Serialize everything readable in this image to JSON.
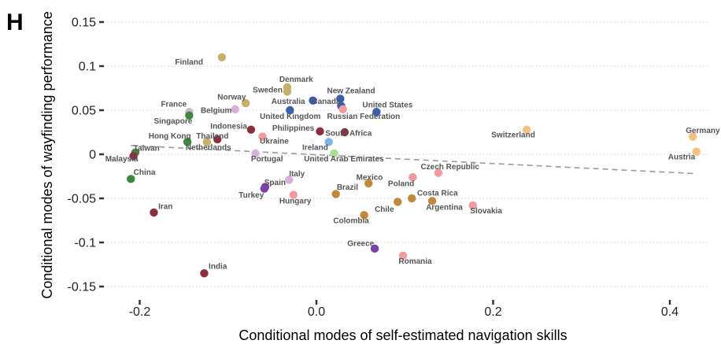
{
  "panel_letter": "H",
  "colors": {
    "Europe": "#b5a060",
    "EuropeCentral": "#f29aa0",
    "Asia": "#8b2f40",
    "EastAsia": "#3a8a3a",
    "Oceania": "#3a5fb0",
    "LatinAmerica": "#c08a3a",
    "Southern": "#d8b0d8",
    "WestEurope": "#f5c080",
    "MiddleEast": "#7b3fb0",
    "Mixed": "#a8e090",
    "LightBlue": "#7bb5e8"
  },
  "chart_data": {
    "type": "scatter",
    "title": "",
    "xlabel": "Conditional modes of self-estimated navigation skills",
    "ylabel": "Conditional modes of wayfinding performance",
    "xlim": [
      -0.245,
      0.45
    ],
    "ylim": [
      -0.155,
      0.155
    ],
    "xticks": [
      -0.2,
      0.0,
      0.2,
      0.4
    ],
    "xtick_labels": [
      "-0.2",
      "0.0",
      "0.2",
      "0.4"
    ],
    "yticks": [
      -0.15,
      -0.1,
      -0.05,
      0,
      0.05,
      0.1,
      0.15
    ],
    "ytick_labels": [
      "-0.15",
      "-0.1",
      "-0.05",
      "0",
      "0.05",
      "0.1",
      "0.15"
    ],
    "grid": true,
    "trend_line": {
      "x": [
        -0.21,
        0.43
      ],
      "y": [
        0.01,
        -0.022
      ]
    },
    "points": [
      {
        "label": "Finland",
        "x": -0.107,
        "y": 0.11,
        "color": "#c8b068",
        "lx": -0.16,
        "ly": 0.102
      },
      {
        "label": "Denmark",
        "x": -0.033,
        "y": 0.076,
        "color": "#c8b068",
        "lx": -0.042,
        "ly": 0.082
      },
      {
        "label": "Sweden",
        "x": -0.033,
        "y": 0.071,
        "color": "#c8b068",
        "lx": -0.072,
        "ly": 0.07
      },
      {
        "label": "New Zealand",
        "x": 0.027,
        "y": 0.063,
        "color": "#3a5fb0",
        "lx": 0.012,
        "ly": 0.069
      },
      {
        "label": "Norway",
        "x": -0.08,
        "y": 0.058,
        "color": "#c8b068",
        "lx": -0.112,
        "ly": 0.062
      },
      {
        "label": "Australia",
        "x": -0.004,
        "y": 0.061,
        "color": "#3a5fb0",
        "lx": -0.051,
        "ly": 0.057
      },
      {
        "label": "Canada",
        "x": 0.028,
        "y": 0.055,
        "color": "#3a5fb0",
        "lx": -0.005,
        "ly": 0.057
      },
      {
        "label": "United States",
        "x": 0.068,
        "y": 0.048,
        "color": "#3a5fb0",
        "lx": 0.052,
        "ly": 0.053
      },
      {
        "label": "France",
        "x": -0.144,
        "y": 0.048,
        "color": "#d8b0d8",
        "lx": -0.176,
        "ly": 0.054
      },
      {
        "label": "Belgium",
        "x": -0.092,
        "y": 0.051,
        "color": "#d8b0d8",
        "lx": -0.131,
        "ly": 0.047
      },
      {
        "label": "United Kingdom",
        "x": -0.03,
        "y": 0.05,
        "color": "#3a5fb0",
        "lx": -0.064,
        "ly": 0.04
      },
      {
        "label": "Russian Federation",
        "x": 0.03,
        "y": 0.051,
        "color": "#f29aa0",
        "lx": 0.012,
        "ly": 0.04
      },
      {
        "label": "Singapore",
        "x": -0.144,
        "y": 0.044,
        "color": "#3a8a3a",
        "lx": -0.184,
        "ly": 0.035
      },
      {
        "label": "Indonesia",
        "x": -0.074,
        "y": 0.028,
        "color": "#8b2f40",
        "lx": -0.12,
        "ly": 0.029
      },
      {
        "label": "Philippines",
        "x": 0.004,
        "y": 0.026,
        "color": "#8b2f40",
        "lx": -0.05,
        "ly": 0.027
      },
      {
        "label": "South Africa",
        "x": 0.032,
        "y": 0.025,
        "color": "#8b2f40",
        "lx": 0.01,
        "ly": 0.021
      },
      {
        "label": "Switzerland",
        "x": 0.238,
        "y": 0.028,
        "color": "#f5c080",
        "lx": 0.198,
        "ly": 0.019
      },
      {
        "label": "Germany",
        "x": 0.426,
        "y": 0.02,
        "color": "#f5c080",
        "lx": 0.418,
        "ly": 0.024
      },
      {
        "label": "Hong Kong",
        "x": -0.146,
        "y": 0.014,
        "color": "#3a8a3a",
        "lx": -0.19,
        "ly": 0.018
      },
      {
        "label": "Thailand",
        "x": -0.112,
        "y": 0.017,
        "color": "#8b2f40",
        "lx": -0.136,
        "ly": 0.018
      },
      {
        "label": "Ukraine",
        "x": -0.061,
        "y": 0.02,
        "color": "#f29aa0",
        "lx": -0.064,
        "ly": 0.012
      },
      {
        "label": "Netherlands",
        "x": -0.124,
        "y": 0.014,
        "color": "#c8b068",
        "lx": -0.148,
        "ly": 0.005
      },
      {
        "label": "Ireland",
        "x": 0.014,
        "y": 0.014,
        "color": "#7bb5e8",
        "lx": -0.016,
        "ly": 0.005
      },
      {
        "label": "Taiwan",
        "x": -0.205,
        "y": 0.002,
        "color": "#3a8a3a",
        "lx": -0.207,
        "ly": 0.004
      },
      {
        "label": "Malaysia",
        "x": -0.207,
        "y": -0.002,
        "color": "#8b2f40",
        "lx": -0.239,
        "ly": -0.008
      },
      {
        "label": "Portugal",
        "x": -0.069,
        "y": 0.001,
        "color": "#d8b0d8",
        "lx": -0.074,
        "ly": -0.008
      },
      {
        "label": "United Arab Emirates",
        "x": 0.02,
        "y": 0.001,
        "color": "#a8e090",
        "lx": -0.014,
        "ly": -0.008
      },
      {
        "label": "Austria",
        "x": 0.43,
        "y": 0.003,
        "color": "#f5c080",
        "lx": 0.398,
        "ly": -0.006
      },
      {
        "label": "Czech Republic",
        "x": 0.138,
        "y": -0.021,
        "color": "#f29aa0",
        "lx": 0.118,
        "ly": -0.017
      },
      {
        "label": "China",
        "x": -0.21,
        "y": -0.028,
        "color": "#3a8a3a",
        "lx": -0.207,
        "ly": -0.023
      },
      {
        "label": "Italy",
        "x": -0.031,
        "y": -0.029,
        "color": "#d8b0d8",
        "lx": -0.031,
        "ly": -0.025
      },
      {
        "label": "Mexico",
        "x": 0.059,
        "y": -0.033,
        "color": "#c08a3a",
        "lx": 0.045,
        "ly": -0.029
      },
      {
        "label": "Poland",
        "x": 0.109,
        "y": -0.026,
        "color": "#f29aa0",
        "lx": 0.081,
        "ly": -0.036
      },
      {
        "label": "Spain",
        "x": -0.058,
        "y": -0.037,
        "color": "#7b3fb0",
        "lx": -0.059,
        "ly": -0.035
      },
      {
        "label": "Brazil",
        "x": 0.022,
        "y": -0.045,
        "color": "#c08a3a",
        "lx": 0.023,
        "ly": -0.04
      },
      {
        "label": "Costa Rica",
        "x": 0.108,
        "y": -0.05,
        "color": "#c08a3a",
        "lx": 0.114,
        "ly": -0.047
      },
      {
        "label": "Turkey",
        "x": -0.059,
        "y": -0.039,
        "color": "#7b3fb0",
        "lx": -0.088,
        "ly": -0.049
      },
      {
        "label": "Hungary",
        "x": -0.026,
        "y": -0.046,
        "color": "#f29aa0",
        "lx": -0.042,
        "ly": -0.056
      },
      {
        "label": "Chile",
        "x": 0.092,
        "y": -0.054,
        "color": "#c08a3a",
        "lx": 0.066,
        "ly": -0.065
      },
      {
        "label": "Argentina",
        "x": 0.131,
        "y": -0.053,
        "color": "#c08a3a",
        "lx": 0.124,
        "ly": -0.063
      },
      {
        "label": "Slovakia",
        "x": 0.177,
        "y": -0.058,
        "color": "#f29aa0",
        "lx": 0.174,
        "ly": -0.067
      },
      {
        "label": "Colombia",
        "x": 0.054,
        "y": -0.069,
        "color": "#c08a3a",
        "lx": 0.019,
        "ly": -0.078
      },
      {
        "label": "Iran",
        "x": -0.184,
        "y": -0.066,
        "color": "#8b2f40",
        "lx": -0.179,
        "ly": -0.062
      },
      {
        "label": "Greece",
        "x": 0.066,
        "y": -0.107,
        "color": "#7b3fb0",
        "lx": 0.035,
        "ly": -0.104
      },
      {
        "label": "Romania",
        "x": 0.098,
        "y": -0.115,
        "color": "#f29aa0",
        "lx": 0.093,
        "ly": -0.124
      },
      {
        "label": "India",
        "x": -0.127,
        "y": -0.135,
        "color": "#8b2f40",
        "lx": -0.122,
        "ly": -0.13
      }
    ]
  }
}
